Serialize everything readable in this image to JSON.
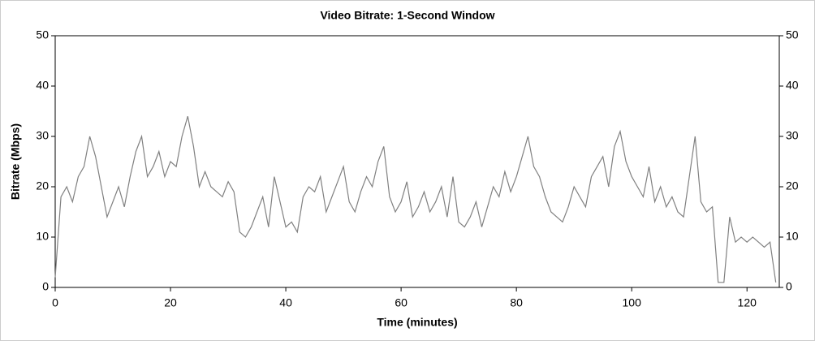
{
  "chart_data": {
    "type": "line",
    "title": "Video Bitrate: 1-Second Window",
    "x_label": "Time (minutes)",
    "y_label": "Bitrate (Mbps)",
    "x": [
      0,
      1,
      2,
      3,
      4,
      5,
      6,
      7,
      8,
      9,
      10,
      11,
      12,
      13,
      14,
      15,
      16,
      17,
      18,
      19,
      20,
      21,
      22,
      23,
      24,
      25,
      26,
      27,
      28,
      29,
      30,
      31,
      32,
      33,
      34,
      35,
      36,
      37,
      38,
      39,
      40,
      41,
      42,
      43,
      44,
      45,
      46,
      47,
      48,
      49,
      50,
      51,
      52,
      53,
      54,
      55,
      56,
      57,
      58,
      59,
      60,
      61,
      62,
      63,
      64,
      65,
      66,
      67,
      68,
      69,
      70,
      71,
      72,
      73,
      74,
      75,
      76,
      77,
      78,
      79,
      80,
      81,
      82,
      83,
      84,
      85,
      86,
      87,
      88,
      89,
      90,
      91,
      92,
      93,
      94,
      95,
      96,
      97,
      98,
      99,
      100,
      101,
      102,
      103,
      104,
      105,
      106,
      107,
      108,
      109,
      110,
      111,
      112,
      113,
      114,
      115,
      116,
      117,
      118,
      119,
      120,
      121,
      122,
      123,
      124,
      125
    ],
    "values": [
      2,
      18,
      20,
      17,
      22,
      24,
      30,
      26,
      20,
      14,
      17,
      20,
      16,
      22,
      27,
      30,
      22,
      24,
      27,
      22,
      25,
      24,
      30,
      34,
      28,
      20,
      23,
      20,
      19,
      18,
      21,
      19,
      11,
      10,
      12,
      15,
      18,
      12,
      22,
      17,
      12,
      13,
      11,
      18,
      20,
      19,
      22,
      15,
      18,
      21,
      24,
      17,
      15,
      19,
      22,
      20,
      25,
      28,
      18,
      15,
      17,
      21,
      14,
      16,
      19,
      15,
      17,
      20,
      14,
      22,
      13,
      12,
      14,
      17,
      12,
      16,
      20,
      18,
      23,
      19,
      22,
      26,
      30,
      24,
      22,
      18,
      15,
      14,
      13,
      16,
      20,
      18,
      16,
      22,
      24,
      26,
      20,
      28,
      31,
      25,
      22,
      20,
      18,
      24,
      17,
      20,
      16,
      18,
      15,
      14,
      22,
      30,
      17,
      15,
      16,
      1,
      1,
      14,
      9,
      10,
      9,
      10,
      9,
      8,
      9,
      1
    ],
    "color": "#808080",
    "xlim": [
      0,
      125.6
    ],
    "xticks": [
      0,
      20,
      40,
      60,
      80,
      100,
      120
    ],
    "ylim": [
      0,
      50
    ],
    "yticks": [
      0,
      10,
      20,
      30,
      40,
      50
    ],
    "y2lim": [
      0,
      50
    ],
    "y2ticks": [
      0,
      10,
      20,
      30,
      40,
      50
    ]
  }
}
